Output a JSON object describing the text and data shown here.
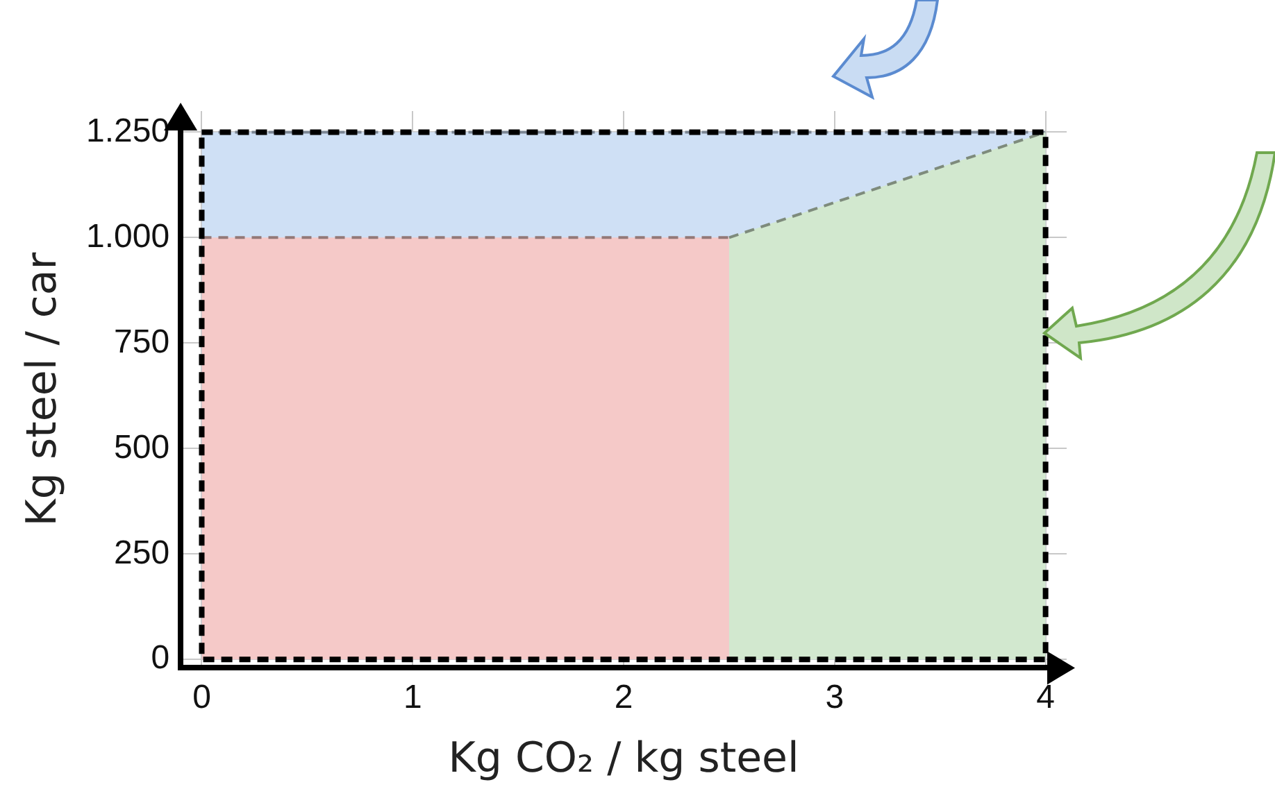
{
  "chart_data": {
    "type": "area",
    "xlabel": "Kg CO₂ / kg steel",
    "ylabel": "Kg steel / car",
    "xlim": [
      -0.1,
      4.1
    ],
    "xticks": [
      0,
      1,
      2,
      3,
      4
    ],
    "ylim": [
      -20,
      1300
    ],
    "yticks": [
      0,
      250,
      500,
      750,
      {
        "value": 1000,
        "label": "1.000"
      },
      {
        "value": 1250,
        "label": "1.250"
      }
    ],
    "grid": true,
    "legend": false,
    "marker": "none",
    "series": [
      {
        "color": "#cfe0f5",
        "x": [
          0,
          4
        ],
        "values": [
          1250,
          1250
        ],
        "line_style": "dashed"
      },
      {
        "color": "#d2e8cf",
        "x": [
          2.5,
          4
        ],
        "values": [
          1000,
          1250
        ],
        "line_style": "dashed"
      },
      {
        "color": "#f5c9c8",
        "x": [
          0,
          2.5
        ],
        "values": [
          1000,
          1000
        ],
        "line_style": "dashed"
      }
    ]
  }
}
